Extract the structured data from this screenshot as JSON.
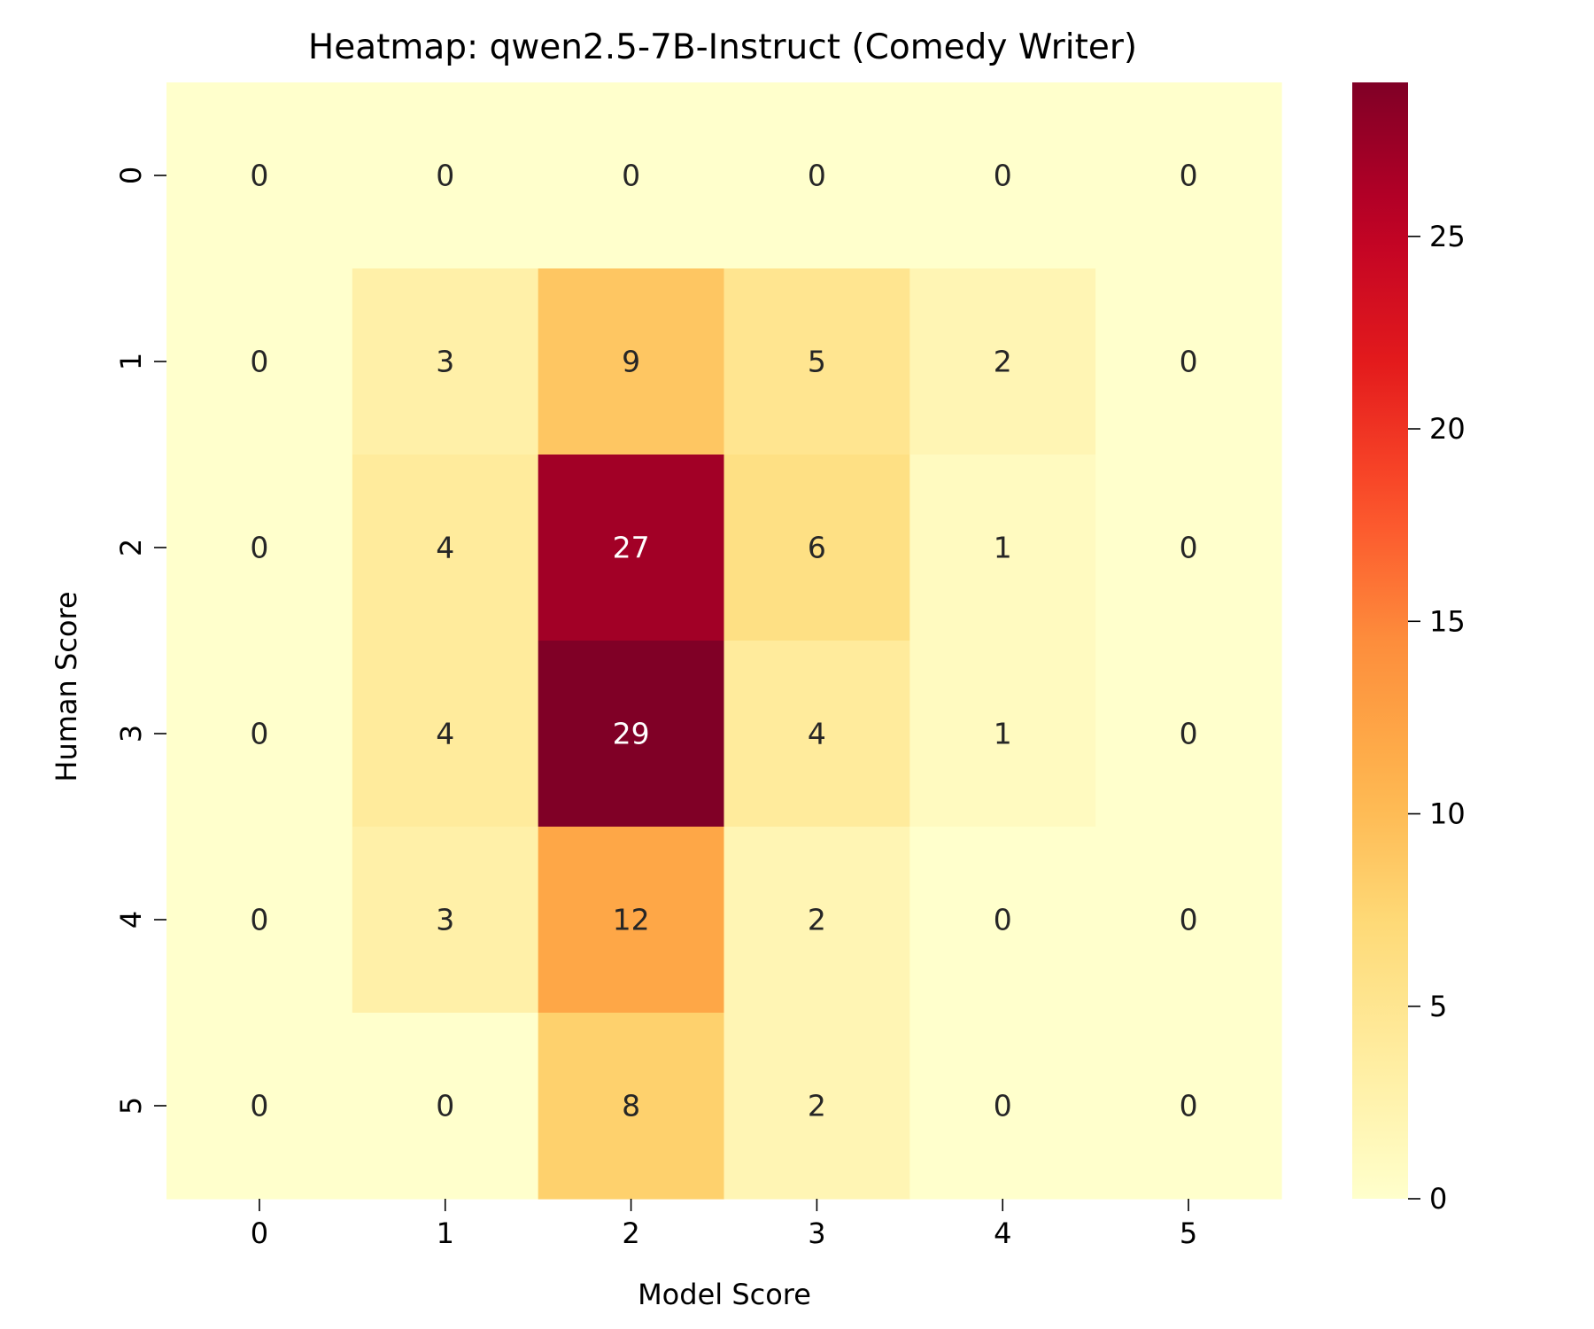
{
  "chart_data": {
    "type": "heatmap",
    "title": "Heatmap: qwen2.5-7B-Instruct (Comedy Writer)",
    "xlabel": "Model Score",
    "ylabel": "Human Score",
    "x_categories": [
      "0",
      "1",
      "2",
      "3",
      "4",
      "5"
    ],
    "y_categories": [
      "0",
      "1",
      "2",
      "3",
      "4",
      "5"
    ],
    "values": [
      [
        0,
        0,
        0,
        0,
        0,
        0
      ],
      [
        0,
        3,
        9,
        5,
        2,
        0
      ],
      [
        0,
        4,
        27,
        6,
        1,
        0
      ],
      [
        0,
        4,
        29,
        4,
        1,
        0
      ],
      [
        0,
        3,
        12,
        2,
        0,
        0
      ],
      [
        0,
        0,
        8,
        2,
        0,
        0
      ]
    ],
    "colormap": "YlOrRd",
    "colorbar": {
      "min": 0,
      "max": 29,
      "ticks": [
        0,
        5,
        10,
        15,
        20,
        25
      ],
      "tick_labels": [
        "0",
        "5",
        "10",
        "15",
        "20",
        "25"
      ]
    },
    "annotations": true,
    "grid": false,
    "legend": "colorbar-right"
  }
}
